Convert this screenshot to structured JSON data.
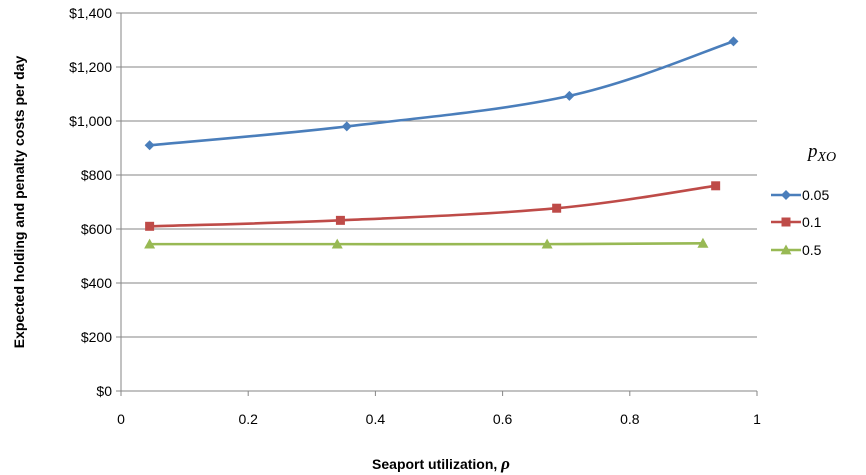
{
  "chart_data": {
    "type": "line",
    "title": "",
    "xlabel_text": "Seaport utilization, ",
    "xlabel_symbol": "ρ",
    "ylabel": "Expected holding and penalty costs per day",
    "xlim": [
      0,
      1
    ],
    "ylim": [
      0,
      1400
    ],
    "x_ticks": [
      0,
      0.2,
      0.4,
      0.6,
      0.8,
      1
    ],
    "x_tick_labels": [
      "0",
      "0.2",
      "0.4",
      "0.6",
      "0.8",
      "1"
    ],
    "y_ticks": [
      0,
      200,
      400,
      600,
      800,
      1000,
      1200,
      1400
    ],
    "y_tick_labels": [
      "$0",
      "$200",
      "$400",
      "$600",
      "$800",
      "$1,000",
      "$1,200",
      "$1,400"
    ],
    "grid": "horizontal",
    "legend_title_main": "p",
    "legend_title_sub": "XO",
    "legend_position": "right",
    "series": [
      {
        "name": "0.05",
        "color": "#4a7ebb",
        "marker": "diamond",
        "points": [
          [
            0.045,
            910
          ],
          [
            0.355,
            980
          ],
          [
            0.705,
            1093
          ],
          [
            0.963,
            1295
          ]
        ]
      },
      {
        "name": "0.1",
        "color": "#be4b48",
        "marker": "square",
        "points": [
          [
            0.045,
            610
          ],
          [
            0.345,
            632
          ],
          [
            0.685,
            677
          ],
          [
            0.935,
            760
          ]
        ]
      },
      {
        "name": "0.5",
        "color": "#98b954",
        "marker": "triangle",
        "points": [
          [
            0.045,
            544
          ],
          [
            0.34,
            544
          ],
          [
            0.67,
            544
          ],
          [
            0.915,
            547
          ]
        ]
      }
    ]
  }
}
